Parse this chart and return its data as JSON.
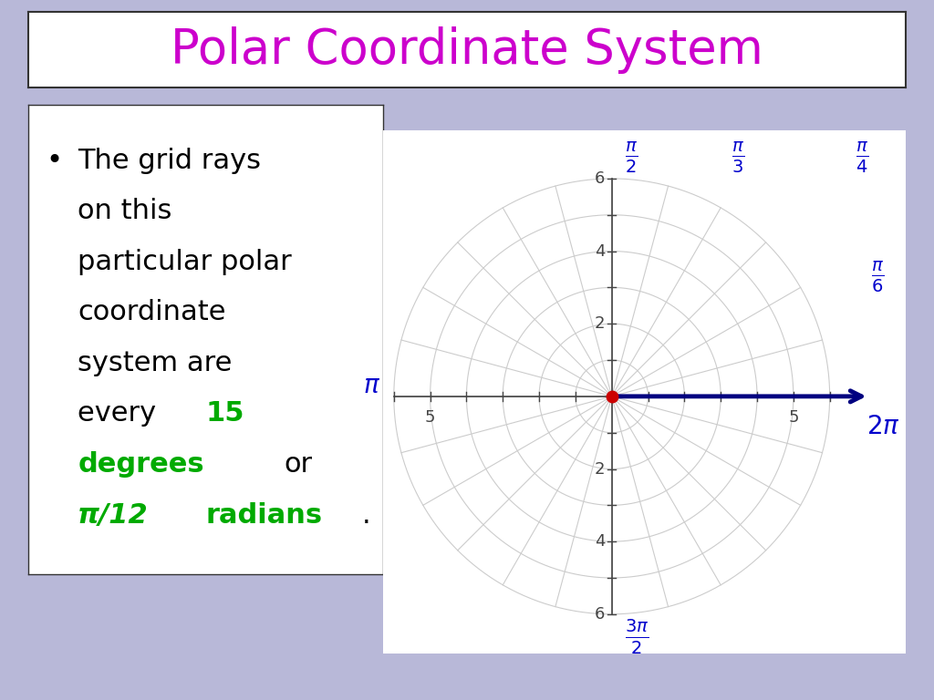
{
  "title": "Polar Coordinate System",
  "title_color": "#CC00CC",
  "title_fontsize": 38,
  "bg_color": "#B8B8D8",
  "polar_bg": "#FFFFFF",
  "ray_color": "#CCCCCC",
  "circle_color": "#CCCCCC",
  "axis_color": "#444444",
  "arrow_color": "#000080",
  "dot_color": "#CC0000",
  "label_color": "#0000CC",
  "label_fontsize": 20,
  "axis_label_fontsize": 13,
  "max_r": 6,
  "ray_step_deg": 15,
  "circle_steps": [
    1,
    2,
    3,
    4,
    5,
    6
  ],
  "bullet_fontsize": 22,
  "bullet_green_color": "#00AA00"
}
